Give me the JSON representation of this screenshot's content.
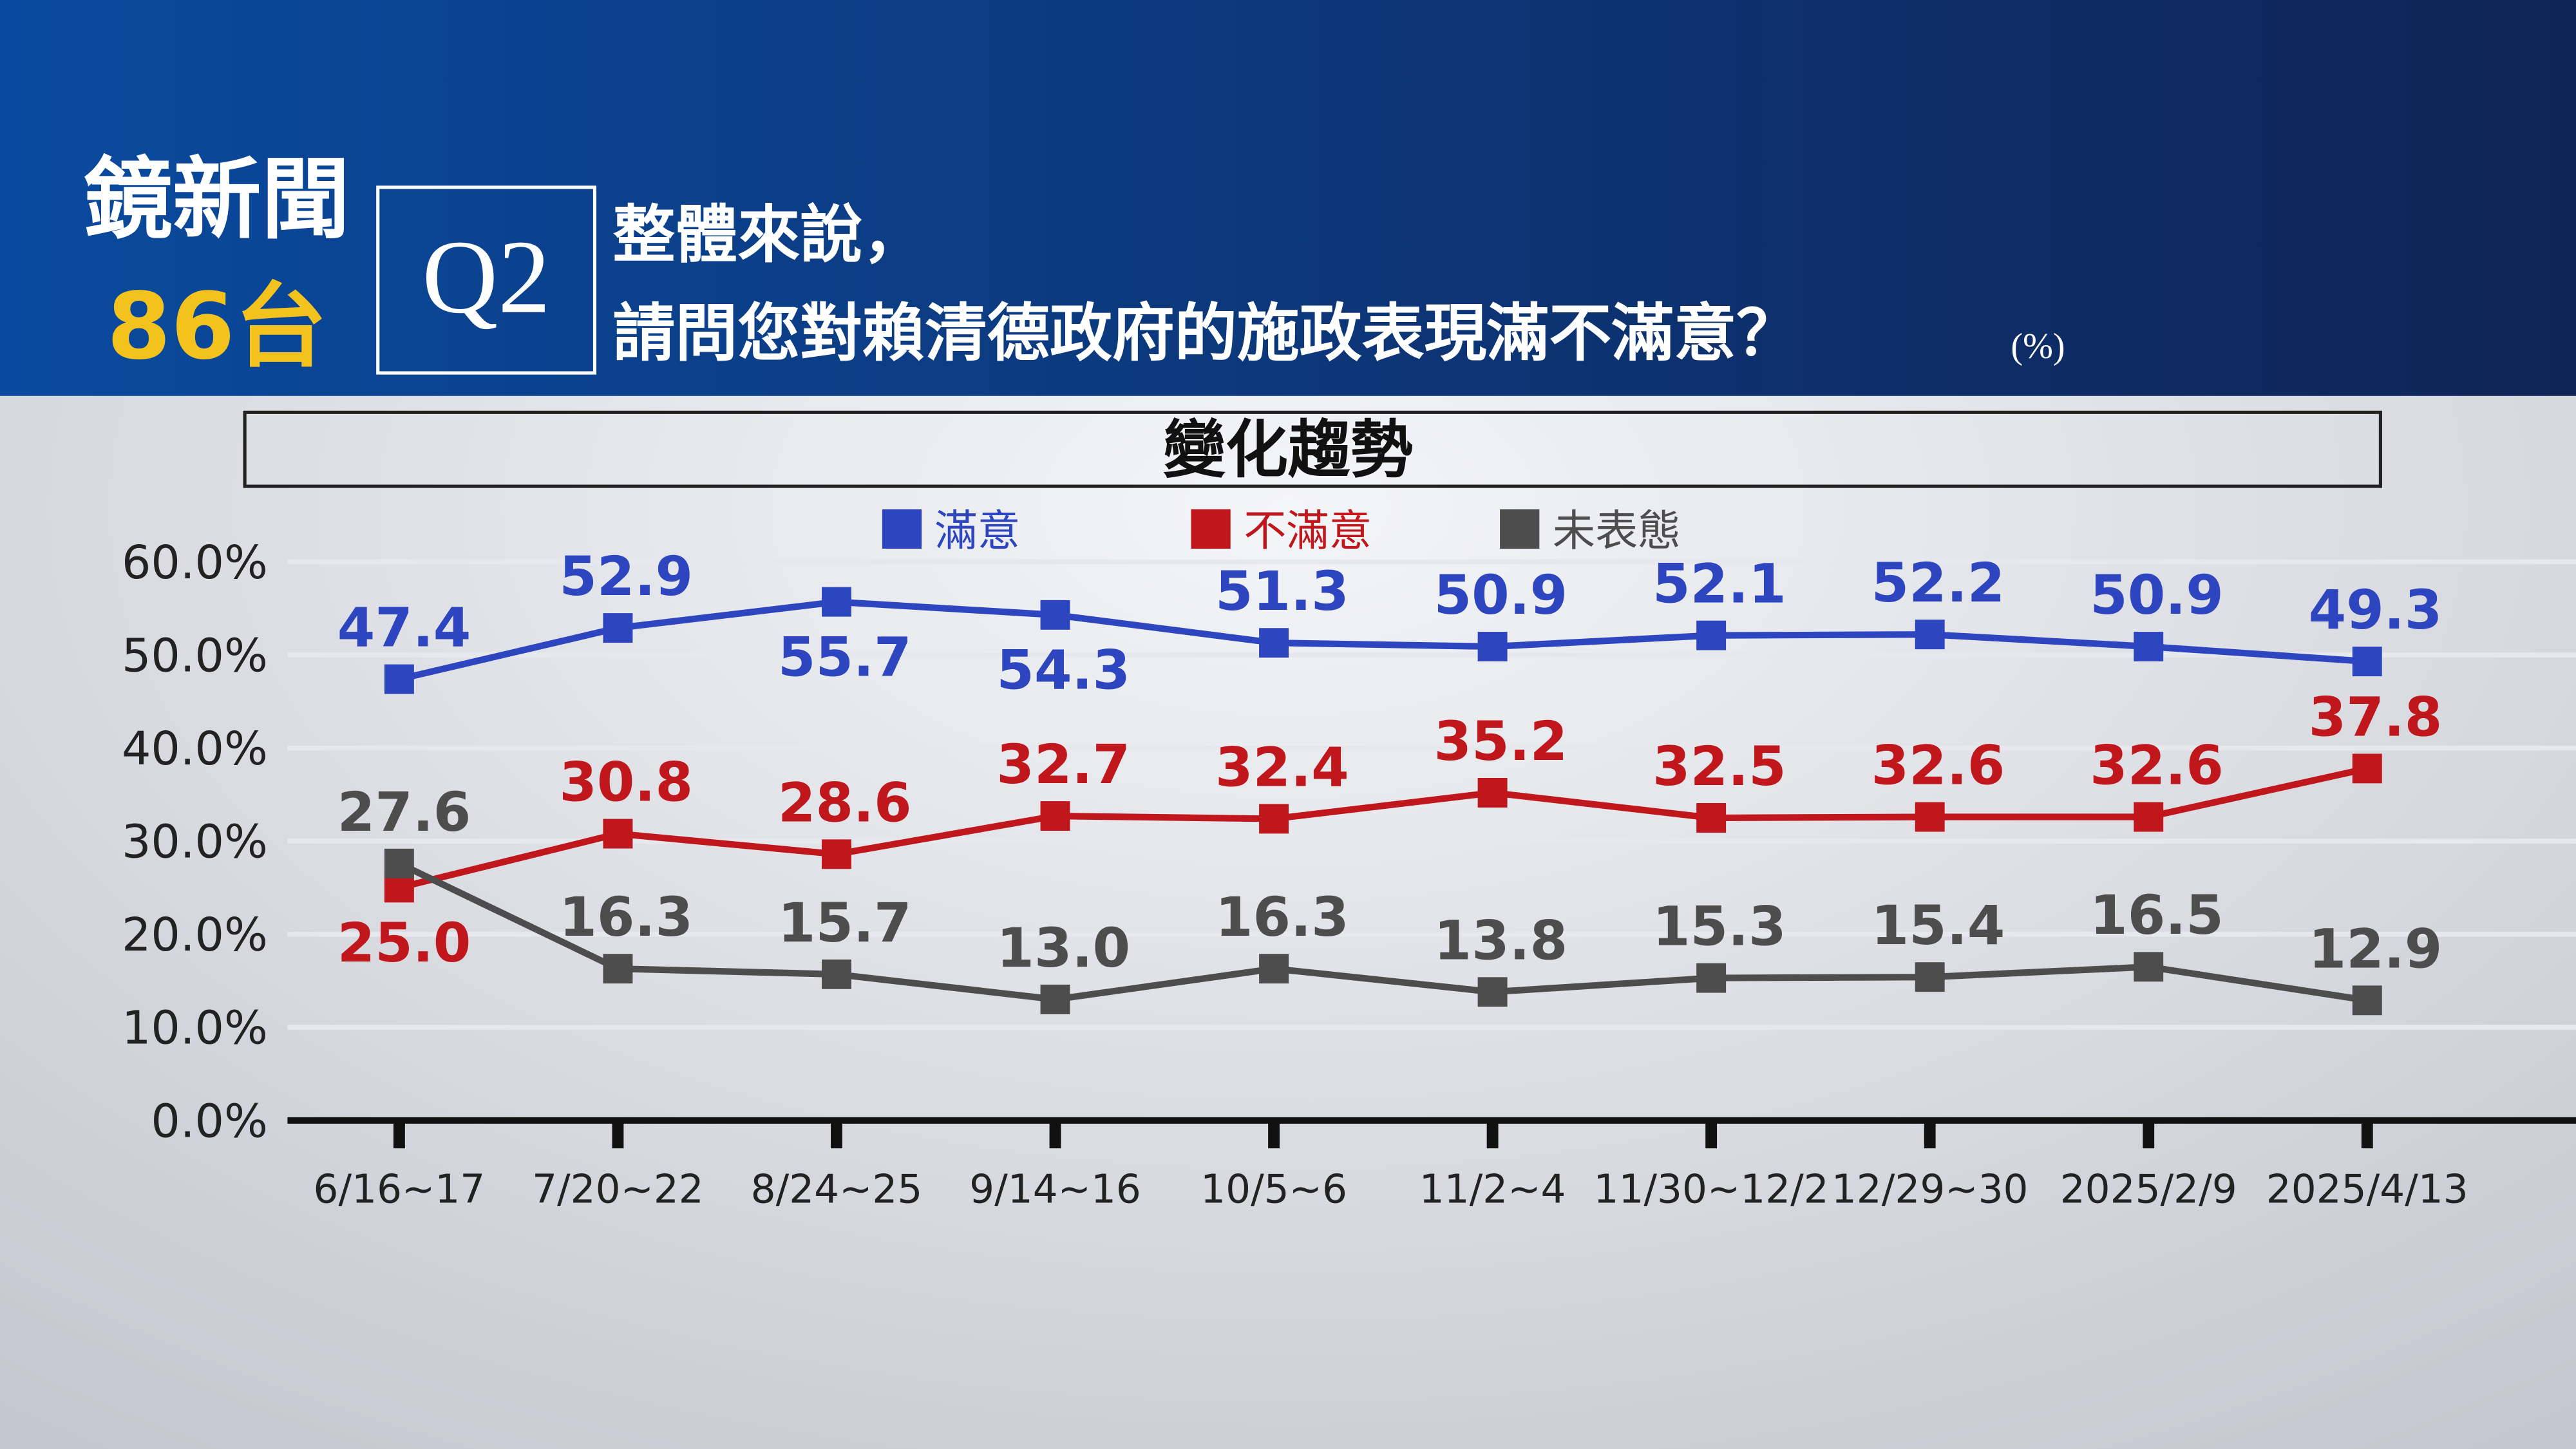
{
  "header": {
    "brand": "鏡新聞",
    "channel": "86台",
    "question_no": "Q2",
    "line1": "整體來說，",
    "line2": "請問您對賴清德政府的施政表現滿不滿意？",
    "unit": "(%)"
  },
  "chart_data": {
    "type": "line",
    "title": "變化趨勢",
    "categories": [
      "6/16~17",
      "7/20~22",
      "8/24~25",
      "9/14~16",
      "10/5~6",
      "11/2~4",
      "11/30~12/2",
      "12/29~30",
      "2025/2/9",
      "2025/4/13"
    ],
    "series": [
      {
        "name": "滿意",
        "color": "#2e45c0",
        "values": [
          47.4,
          52.9,
          55.7,
          54.3,
          51.3,
          50.9,
          52.1,
          52.2,
          50.9,
          49.3
        ],
        "value_labels": [
          "47.4",
          "52.9",
          "55.7",
          "54.3",
          "51.3",
          "50.9",
          "52.1",
          "52.2",
          "50.9",
          "49.3"
        ]
      },
      {
        "name": "不滿意",
        "color": "#c0171c",
        "values": [
          25.0,
          30.8,
          28.6,
          32.7,
          32.4,
          35.2,
          32.5,
          32.6,
          32.6,
          37.8
        ],
        "value_labels": [
          "25.0",
          "30.8",
          "28.6",
          "32.7",
          "32.4",
          "35.2",
          "32.5",
          "32.6",
          "32.6",
          "37.8"
        ]
      },
      {
        "name": "未表態",
        "color": "#4d4d4d",
        "values": [
          27.6,
          16.3,
          15.7,
          13.0,
          16.3,
          13.8,
          15.3,
          15.4,
          16.5,
          12.9
        ],
        "value_labels": [
          "27.6",
          "16.3",
          "15.7",
          "13.0",
          "16.3",
          "13.8",
          "15.3",
          "15.4",
          "16.5",
          "12.9"
        ]
      }
    ],
    "ylim": [
      0,
      60
    ],
    "yticks": [
      {
        "value": 0,
        "label": "0.0%"
      },
      {
        "value": 10,
        "label": "10.0%"
      },
      {
        "value": 20,
        "label": "20.0%"
      },
      {
        "value": 30,
        "label": "30.0%"
      },
      {
        "value": 40,
        "label": "40.0%"
      },
      {
        "value": 50,
        "label": "50.0%"
      },
      {
        "value": 60,
        "label": "60.0%"
      }
    ],
    "grid": true
  }
}
